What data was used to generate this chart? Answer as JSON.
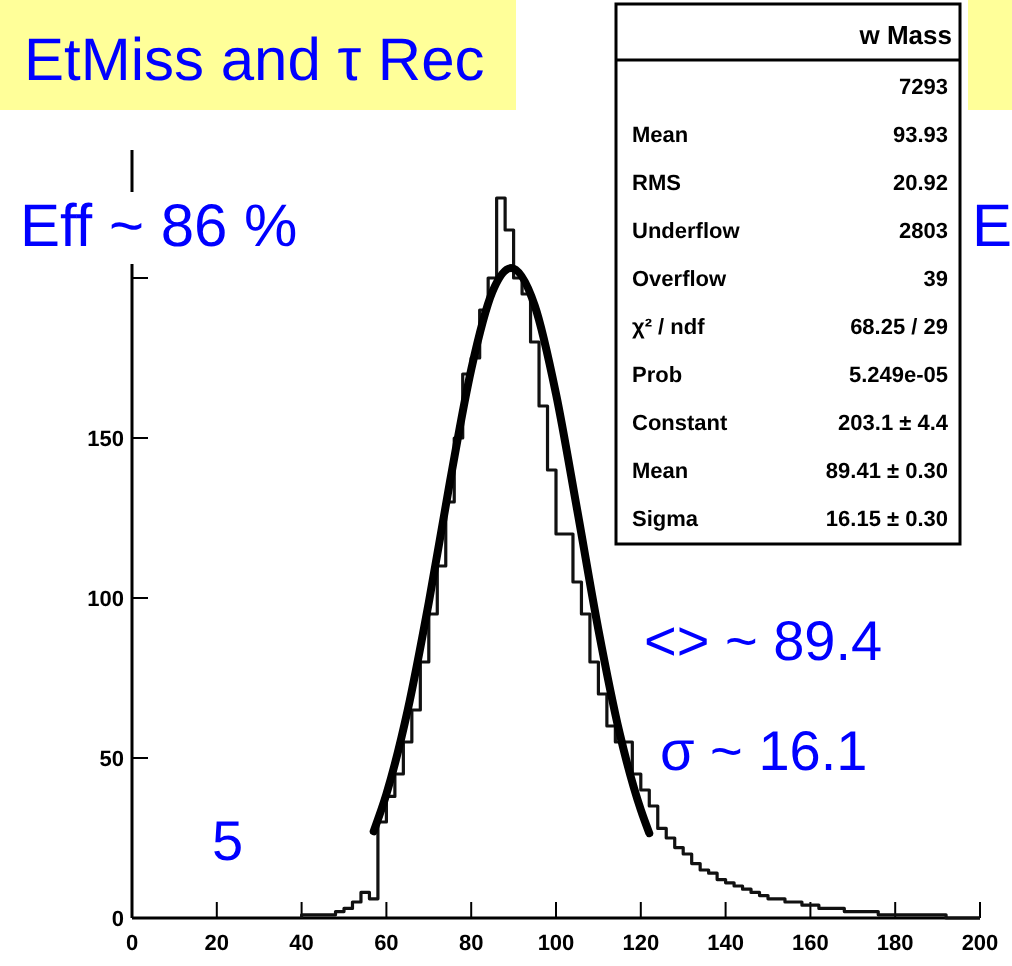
{
  "chart_data": {
    "type": "histogram",
    "title": "EtMiss and τ Rec",
    "xlim": [
      0,
      200
    ],
    "xticks": [
      0,
      20,
      40,
      60,
      80,
      100,
      120,
      140,
      160,
      180,
      200
    ],
    "ylim": [
      0,
      240
    ],
    "yticks": [
      0,
      50,
      100,
      150,
      {
        "value": 200,
        "label": null
      }
    ],
    "grid": false,
    "series": [
      {
        "color": "#111111",
        "bins": [
          40,
          42,
          44,
          46,
          48,
          50,
          52,
          54,
          56,
          58,
          60,
          62,
          64,
          66,
          68,
          70,
          72,
          74,
          76,
          78,
          80,
          82,
          84,
          86,
          88,
          90,
          92,
          94,
          96,
          98,
          100,
          102,
          104,
          106,
          108,
          110,
          112,
          114,
          116,
          118,
          120,
          122,
          124,
          126,
          128,
          130,
          132,
          134,
          136,
          138,
          140,
          142,
          144,
          146,
          148,
          150,
          152,
          154,
          156,
          158,
          160,
          162,
          164,
          166,
          168,
          170,
          172,
          174,
          176,
          178,
          180,
          182,
          184,
          186,
          188,
          190,
          192,
          194,
          196,
          198,
          200
        ],
        "values": [
          1,
          1,
          1,
          1,
          2,
          3,
          5,
          8,
          6,
          30,
          38,
          45,
          55,
          65,
          80,
          95,
          110,
          130,
          150,
          170,
          175,
          190,
          200,
          225,
          215,
          200,
          195,
          180,
          160,
          140,
          120,
          120,
          105,
          95,
          80,
          70,
          60,
          55,
          55,
          45,
          40,
          35,
          28,
          25,
          22,
          20,
          17,
          15,
          14,
          12,
          11,
          10,
          9,
          8,
          7,
          6,
          6,
          5,
          5,
          4,
          4,
          3,
          3,
          3,
          2,
          2,
          2,
          2,
          1,
          1,
          1,
          1,
          1,
          1,
          1,
          1,
          0,
          0,
          0,
          0
        ]
      },
      {
        "type": "line",
        "color": "#000000",
        "line_style": "solid",
        "marker": "none",
        "x": [
          57,
          60,
          65,
          70,
          75,
          80,
          85,
          89.41,
          95,
          100,
          105,
          110,
          115,
          120,
          122
        ],
        "values": [
          27.1,
          38.7,
          64.8,
          98.6,
          136.4,
          171.4,
          195.7,
          203.1,
          191.3,
          163.8,
          127.5,
          90.1,
          57.8,
          33.8,
          26.5
        ]
      }
    ],
    "annotations": [
      "Eff ~ 86 %",
      "5",
      "<> ~ 89.4",
      "σ ~ 16.1",
      "E",
      "w Mass",
      "7293",
      "Mean",
      "93.93",
      "RMS",
      "20.92",
      "Underflow",
      "2803",
      "Overflow",
      "39",
      "χ² / ndf",
      "68.25 / 29",
      "Prob",
      "5.249e-05",
      "Constant",
      "203.1 ± 4.4",
      "Mean",
      "89.41 ± 0.30",
      "Sigma",
      "16.15 ± 0.30"
    ]
  }
}
